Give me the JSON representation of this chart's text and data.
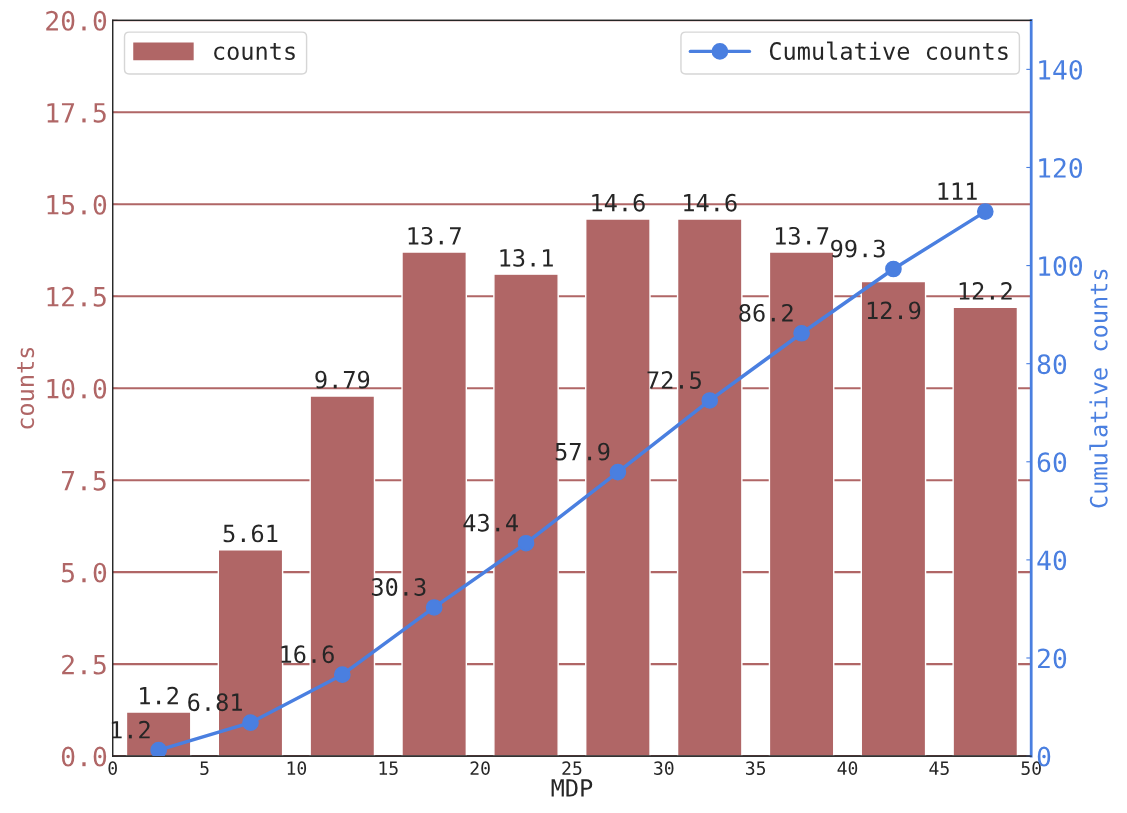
{
  "chart_data": {
    "type": "bar",
    "xlabel": "MDP",
    "ylabel": "counts",
    "y2label": "Cumulative counts",
    "x": [
      2.5,
      7.5,
      12.5,
      17.5,
      22.5,
      27.5,
      32.5,
      37.5,
      42.5,
      47.5
    ],
    "series": [
      {
        "name": "counts",
        "color": "#b06666",
        "values": [
          1.2,
          5.61,
          9.79,
          13.7,
          13.1,
          14.6,
          14.6,
          13.7,
          12.9,
          12.2
        ]
      },
      {
        "name": "Cumulative counts",
        "type": "line",
        "axis": "y2",
        "color": "#4a7fe0",
        "marker": "circle",
        "values": [
          1.2,
          6.81,
          16.6,
          30.3,
          43.4,
          57.9,
          72.5,
          86.2,
          99.3,
          111
        ]
      }
    ],
    "data_labels": true,
    "xlim": [
      0,
      50
    ],
    "xticks": [
      0,
      5,
      10,
      15,
      20,
      25,
      30,
      35,
      40,
      45,
      50
    ],
    "ylim": [
      0,
      20
    ],
    "yticks": [
      {
        "value": 0,
        "label": "0.0"
      },
      {
        "value": 2.5,
        "label": "2.5"
      },
      {
        "value": 5,
        "label": "5.0"
      },
      {
        "value": 7.5,
        "label": "7.5"
      },
      {
        "value": 10,
        "label": "10.0"
      },
      {
        "value": 12.5,
        "label": "12.5"
      },
      {
        "value": 15,
        "label": "15.0"
      },
      {
        "value": 17.5,
        "label": "17.5"
      },
      {
        "value": 20,
        "label": "20.0"
      }
    ],
    "y2lim": [
      0,
      150
    ],
    "y2ticks": [
      0,
      20,
      40,
      60,
      80,
      100,
      120,
      140
    ],
    "grid": "y",
    "legend": "top"
  }
}
